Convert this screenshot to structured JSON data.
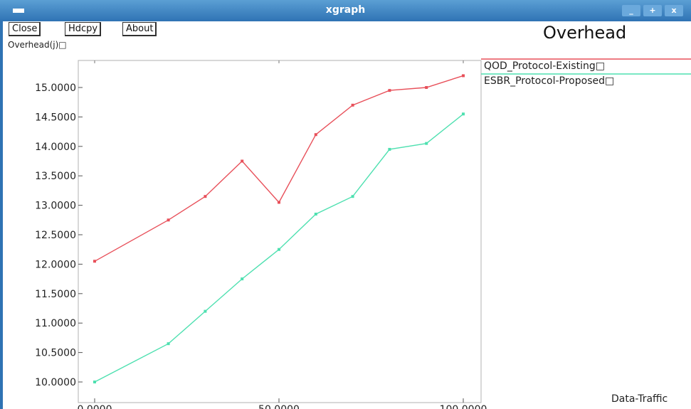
{
  "window": {
    "title": "xgraph",
    "controls": [
      "_",
      "+",
      "x"
    ]
  },
  "toolbar": {
    "buttons": [
      "Close",
      "Hdcpy",
      "About"
    ]
  },
  "chart_data": {
    "type": "line",
    "title": "Overhead",
    "ylabel": "Overhead(j)□",
    "xlabel": "Data-Traffic",
    "xlim": [
      0,
      100
    ],
    "ylim": [
      10,
      15
    ],
    "x_ticks": [
      "0.0000",
      "50.0000",
      "100.0000"
    ],
    "y_ticks": [
      "10.0000",
      "10.5000",
      "11.0000",
      "11.5000",
      "12.0000",
      "12.5000",
      "13.0000",
      "13.5000",
      "14.0000",
      "14.5000",
      "15.0000"
    ],
    "series": [
      {
        "name": "QOD_Protocol-Existing□",
        "color": "#e8505a",
        "x": [
          0,
          20,
          30,
          40,
          50,
          60,
          70,
          80,
          90,
          100
        ],
        "y": [
          12.05,
          12.75,
          13.15,
          13.75,
          13.05,
          14.2,
          14.7,
          14.95,
          15.0,
          15.2
        ]
      },
      {
        "name": "ESBR_Protocol-Proposed□",
        "color": "#4ee0b0",
        "x": [
          0,
          20,
          30,
          40,
          50,
          60,
          70,
          80,
          90,
          100
        ],
        "y": [
          10.0,
          10.65,
          11.2,
          11.75,
          12.25,
          12.85,
          13.15,
          13.95,
          14.05,
          14.55
        ]
      }
    ]
  }
}
